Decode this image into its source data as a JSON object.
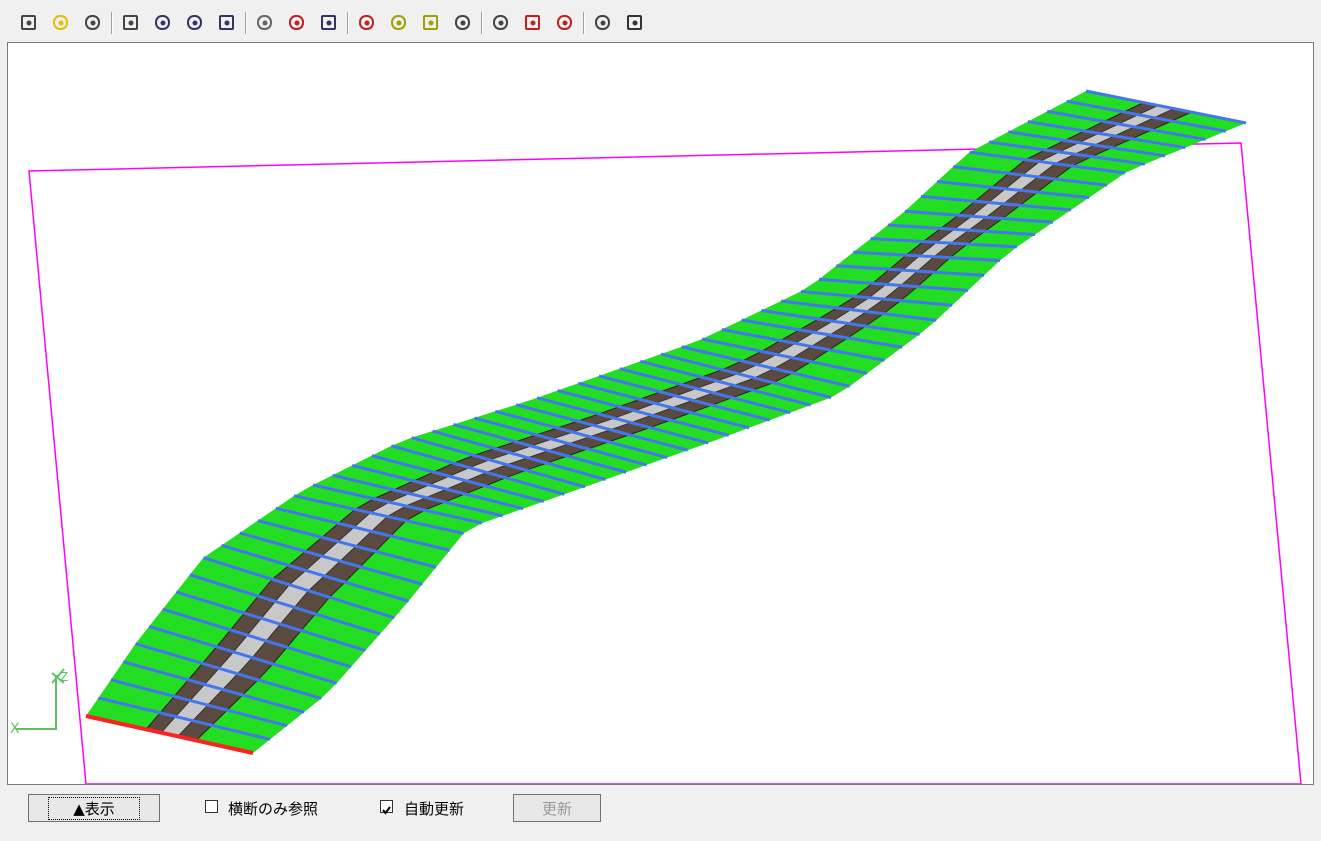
{
  "buttons": {
    "show": "▲表示",
    "update": "更新"
  },
  "checkboxes": [
    {
      "label": "横断のみ参照",
      "checked": false
    },
    {
      "label": "自動更新",
      "checked": true
    }
  ],
  "axes": {
    "z": "Z",
    "x": "X"
  }
}
